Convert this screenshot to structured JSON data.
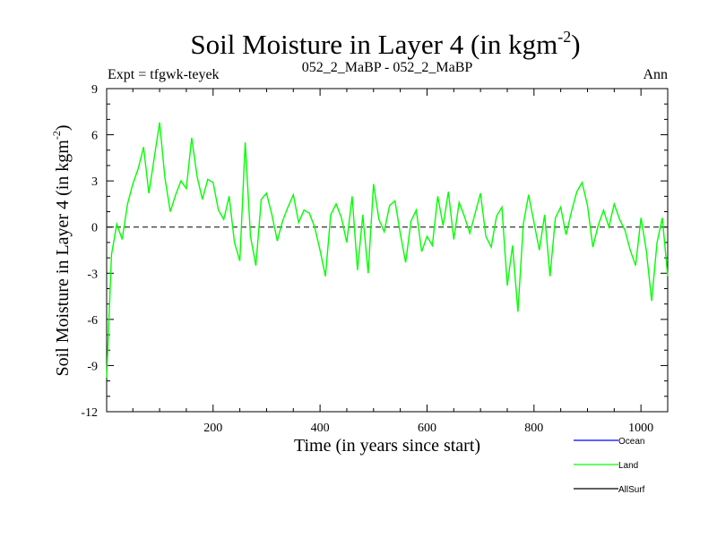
{
  "chart_data": {
    "type": "line",
    "title": "Soil Moisture in Layer 4 (in kgm",
    "title_exponent": "-2",
    "title_close": ")",
    "subtitle_left": "Expt = tfgwk-teyek",
    "subtitle_center": "052_2_MaBP - 052_2_MaBP",
    "subtitle_right": "Ann",
    "xlabel": "Time (in years since start)",
    "ylabel": "Soil Moisture in Layer 4 (in kgm",
    "ylabel_exponent": "-2",
    "ylabel_close": ")",
    "xlim": [
      1,
      1050
    ],
    "ylim": [
      -12,
      9
    ],
    "x_ticks": [
      200,
      400,
      600,
      800,
      1000
    ],
    "x_tick_labels": [
      "200",
      "400",
      "600",
      "800",
      "1000"
    ],
    "y_ticks": [
      -12,
      -9,
      -6,
      -3,
      0,
      3,
      6,
      9
    ],
    "y_tick_labels": [
      "-12",
      "-9",
      "-6",
      "-3",
      "0",
      "3",
      "6",
      "9"
    ],
    "zero_line": {
      "value": 0,
      "style": "dashed"
    },
    "legend": {
      "placement": "bottom-right",
      "entries": [
        {
          "name": "Ocean",
          "color": "#0000ff"
        },
        {
          "name": "Land",
          "color": "#00ff00"
        },
        {
          "name": "AllSurf",
          "color": "#000000"
        }
      ]
    },
    "series": [
      {
        "name": "Land",
        "color": "#00ff00",
        "x": [
          1,
          10,
          20,
          30,
          40,
          50,
          60,
          70,
          80,
          90,
          100,
          110,
          120,
          130,
          140,
          150,
          160,
          170,
          180,
          190,
          200,
          210,
          220,
          230,
          240,
          250,
          260,
          270,
          280,
          290,
          300,
          310,
          320,
          330,
          340,
          350,
          360,
          370,
          380,
          390,
          400,
          410,
          420,
          430,
          440,
          450,
          460,
          470,
          480,
          490,
          500,
          510,
          520,
          530,
          540,
          550,
          560,
          570,
          580,
          590,
          600,
          610,
          620,
          630,
          640,
          650,
          660,
          670,
          680,
          690,
          700,
          710,
          720,
          730,
          740,
          750,
          760,
          770,
          780,
          790,
          800,
          810,
          820,
          830,
          840,
          850,
          860,
          870,
          880,
          890,
          900,
          910,
          920,
          930,
          940,
          950,
          960,
          970,
          980,
          990,
          1000,
          1010,
          1020,
          1030,
          1040,
          1050
        ],
        "values": [
          -9.8,
          -1.8,
          0.2,
          -0.8,
          1.5,
          2.8,
          3.8,
          5.2,
          2.2,
          4.5,
          6.8,
          3.2,
          1.0,
          2.1,
          3.0,
          2.5,
          5.8,
          3.3,
          1.8,
          3.1,
          2.9,
          1.1,
          0.5,
          2.0,
          -1.0,
          -2.2,
          5.5,
          -0.6,
          -2.5,
          1.8,
          2.2,
          0.8,
          -0.9,
          0.4,
          1.3,
          2.1,
          0.3,
          1.1,
          0.9,
          0.0,
          -1.5,
          -3.2,
          0.8,
          1.5,
          0.6,
          -1.0,
          2.0,
          -2.8,
          0.8,
          -3.0,
          2.8,
          0.5,
          -0.3,
          1.4,
          1.7,
          -0.4,
          -2.3,
          0.4,
          1.1,
          -1.6,
          -0.6,
          -1.2,
          2.0,
          0.1,
          2.3,
          -0.8,
          1.6,
          0.7,
          -0.4,
          0.9,
          2.2,
          -0.6,
          -1.3,
          0.7,
          1.3,
          -3.8,
          -1.2,
          -5.5,
          0.2,
          2.1,
          0.3,
          -1.5,
          0.8,
          -3.2,
          0.6,
          1.3,
          -0.5,
          1.0,
          2.3,
          2.9,
          1.4,
          -1.3,
          0.1,
          1.1,
          0.0,
          1.5,
          0.5,
          -0.2,
          -1.5,
          -2.5,
          0.6,
          -1.5,
          -4.8,
          -1.0,
          0.6,
          -3.2
        ]
      }
    ]
  }
}
